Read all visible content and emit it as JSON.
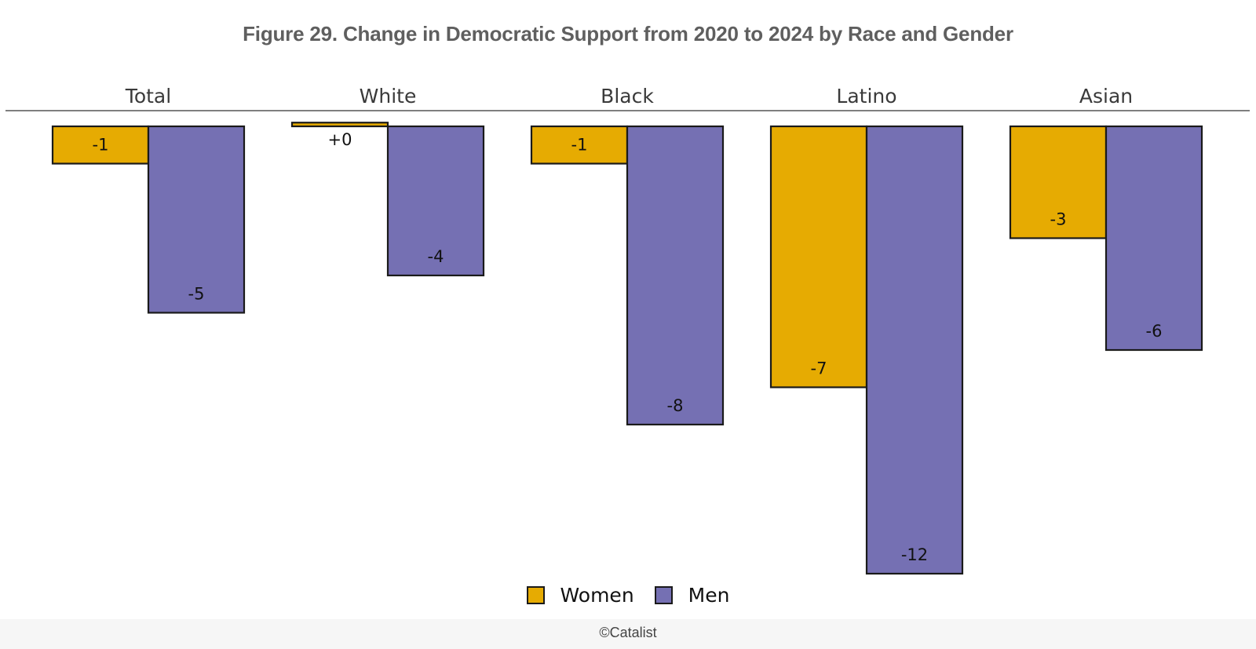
{
  "title": "Figure 29. Change in Democratic Support from 2020 to 2024 by Race and Gender",
  "credit": "©Catalist",
  "colors": {
    "women": "#e6ab02",
    "men": "#7570b3",
    "outline": "#1a1a1a"
  },
  "chart_data": {
    "type": "bar",
    "title": "Figure 29. Change in Democratic Support from 2020 to 2024 by Race and Gender",
    "facets": [
      "Total",
      "White",
      "Black",
      "Latino",
      "Asian"
    ],
    "series": [
      {
        "name": "Women",
        "values": [
          -1,
          0.1,
          -1,
          -7,
          -3
        ],
        "labels": [
          "-1",
          "+0",
          "-1",
          "-7",
          "-3"
        ]
      },
      {
        "name": "Men",
        "values": [
          -5,
          -4,
          -8,
          -12,
          -6
        ],
        "labels": [
          "-5",
          "-4",
          "-8",
          "-12",
          "-6"
        ]
      }
    ],
    "ylim": [
      -12,
      0
    ],
    "legend": "bottom-center",
    "grid": false
  },
  "legend": {
    "women_label": "Women",
    "men_label": "Men"
  }
}
